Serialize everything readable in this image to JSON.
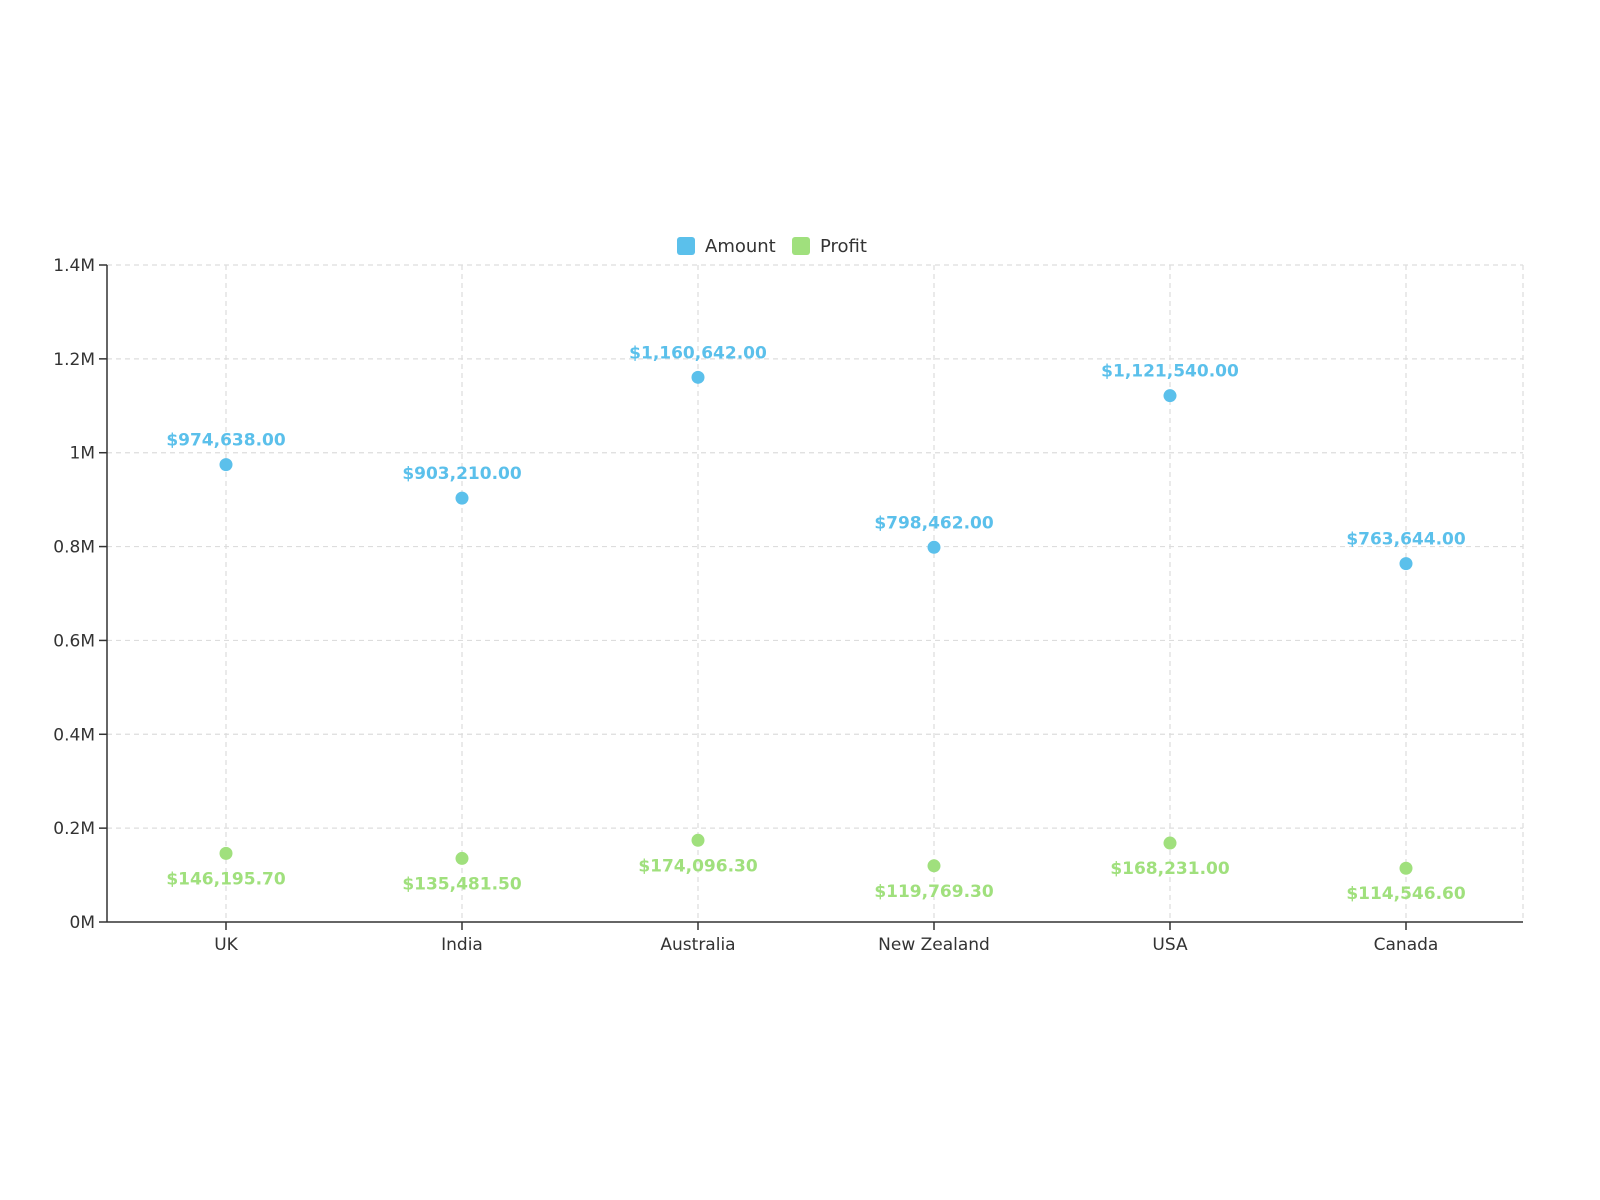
{
  "chart_data": {
    "type": "scatter",
    "categories": [
      "UK",
      "India",
      "Australia",
      "New Zealand",
      "USA",
      "Canada"
    ],
    "series": [
      {
        "name": "Amount",
        "color": "#5bc0eb",
        "values": [
          974638,
          903210,
          1160642,
          798462,
          1121540,
          763644
        ],
        "labels": [
          "$974,638.00",
          "$903,210.00",
          "$1,160,642.00",
          "$798,462.00",
          "$1,121,540.00",
          "$763,644.00"
        ],
        "label_position": "above"
      },
      {
        "name": "Profit",
        "color": "#a0e07d",
        "values": [
          146195.7,
          135481.5,
          174096.3,
          119769.3,
          168231,
          114546.6
        ],
        "labels": [
          "$146,195.70",
          "$135,481.50",
          "$174,096.30",
          "$119,769.30",
          "$168,231.00",
          "$114,546.60"
        ],
        "label_position": "below"
      }
    ],
    "ylim": [
      0,
      1400000
    ],
    "yticks": [
      0,
      200000,
      400000,
      600000,
      800000,
      1000000,
      1200000,
      1400000
    ],
    "ytick_labels": [
      "0M",
      "0.2M",
      "0.4M",
      "0.6M",
      "0.8M",
      "1M",
      "1.2M",
      "1.4M"
    ],
    "grid": true,
    "legend_position": "top-center",
    "title": "",
    "xlabel": "",
    "ylabel": ""
  }
}
